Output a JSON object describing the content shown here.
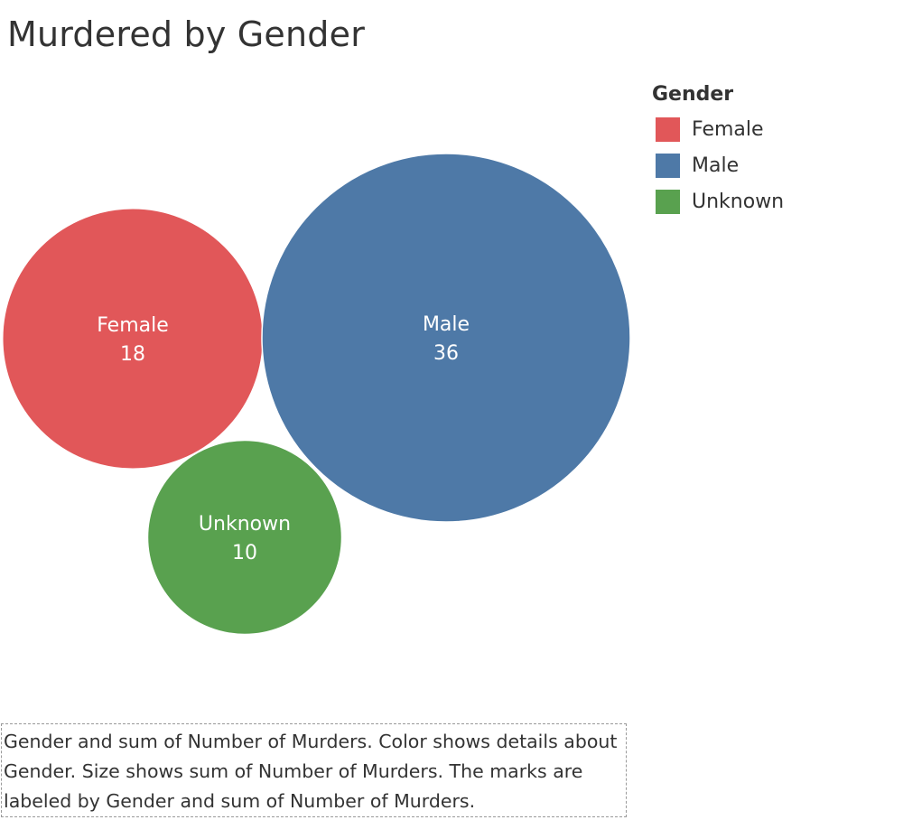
{
  "title": "Murdered by Gender",
  "legend": {
    "title": "Gender",
    "items": [
      {
        "label": "Female",
        "color": "#e15759"
      },
      {
        "label": "Male",
        "color": "#4e79a7"
      },
      {
        "label": "Unknown",
        "color": "#59a14f"
      }
    ]
  },
  "caption": "Gender and sum of Number of Murders.  Color shows details about Gender.  Size shows sum of Number of Murders.  The marks are labeled by Gender and sum of Number of Murders.",
  "chart_data": {
    "type": "packed-bubble",
    "title": "Murdered by Gender",
    "size_measure": "Number of Murders",
    "color_dimension": "Gender",
    "series": [
      {
        "name": "Female",
        "value": 18,
        "color": "#e15759"
      },
      {
        "name": "Male",
        "value": 36,
        "color": "#4e79a7"
      },
      {
        "name": "Unknown",
        "value": 10,
        "color": "#59a14f"
      }
    ]
  }
}
